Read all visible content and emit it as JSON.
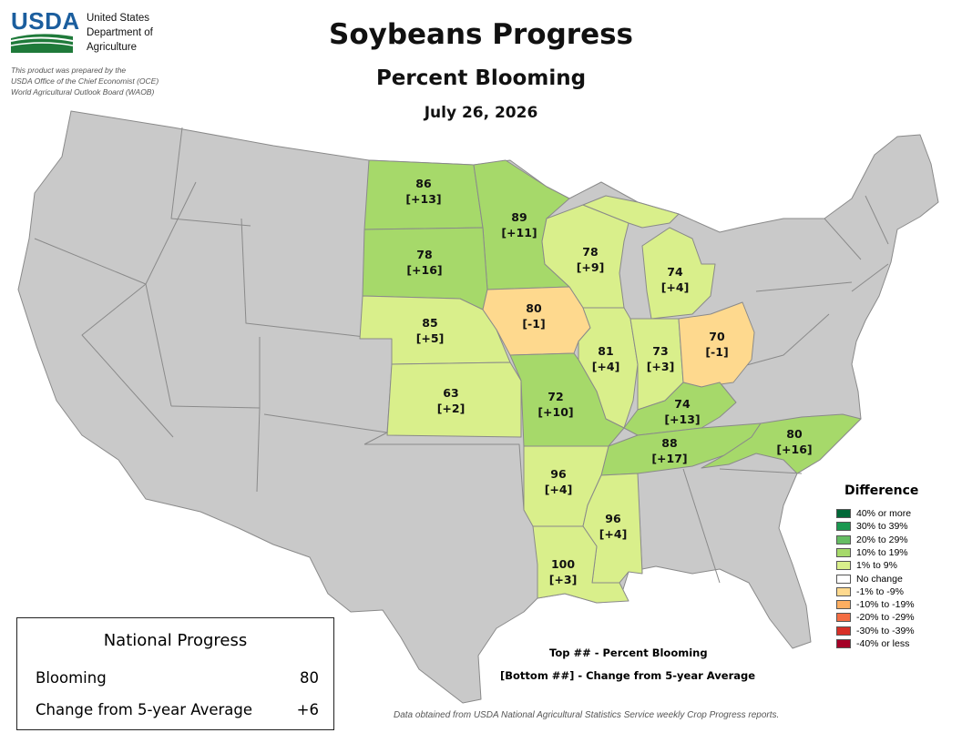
{
  "header": {
    "logo_text": "USDA",
    "department_lines": [
      "United States",
      "Department of",
      "Agriculture"
    ],
    "prepared_note_lines": [
      "This product was prepared by the",
      "USDA Office of the Chief Economist (OCE)",
      "World Agricultural Outlook Board (WAOB)"
    ]
  },
  "title": "Soybeans Progress",
  "subtitle": "Percent Blooming",
  "date": "July 26, 2026",
  "colors": {
    "no_data_state": "#c9c9c9",
    "state_border": "#8a8a8a",
    "plus_10_to_19": "#a6d96a",
    "plus_1_to_9": "#d9ef8b",
    "minus_1_to_9": "#fed98e"
  },
  "states": [
    {
      "name": "North Dakota",
      "top": "86",
      "bottom": "[+13]",
      "category": "10% to 19%"
    },
    {
      "name": "Minnesota",
      "top": "89",
      "bottom": "[+11]",
      "category": "10% to 19%"
    },
    {
      "name": "South Dakota",
      "top": "78",
      "bottom": "[+16]",
      "category": "10% to 19%"
    },
    {
      "name": "Wisconsin",
      "top": "78",
      "bottom": "[+9]",
      "category": "1% to 9%"
    },
    {
      "name": "Michigan",
      "top": "74",
      "bottom": "[+4]",
      "category": "1% to 9%"
    },
    {
      "name": "Nebraska",
      "top": "85",
      "bottom": "[+5]",
      "category": "1% to 9%"
    },
    {
      "name": "Iowa",
      "top": "80",
      "bottom": "[-1]",
      "category": "-1% to -9%"
    },
    {
      "name": "Illinois",
      "top": "81",
      "bottom": "[+4]",
      "category": "1% to 9%"
    },
    {
      "name": "Indiana",
      "top": "73",
      "bottom": "[+3]",
      "category": "1% to 9%"
    },
    {
      "name": "Ohio",
      "top": "70",
      "bottom": "[-1]",
      "category": "-1% to -9%"
    },
    {
      "name": "Kansas",
      "top": "63",
      "bottom": "[+2]",
      "category": "1% to 9%"
    },
    {
      "name": "Missouri",
      "top": "72",
      "bottom": "[+10]",
      "category": "10% to 19%"
    },
    {
      "name": "Kentucky",
      "top": "74",
      "bottom": "[+13]",
      "category": "10% to 19%"
    },
    {
      "name": "Tennessee",
      "top": "88",
      "bottom": "[+17]",
      "category": "10% to 19%"
    },
    {
      "name": "North Carolina",
      "top": "80",
      "bottom": "[+16]",
      "category": "10% to 19%"
    },
    {
      "name": "Arkansas",
      "top": "96",
      "bottom": "[+4]",
      "category": "1% to 9%"
    },
    {
      "name": "Mississippi",
      "top": "96",
      "bottom": "[+4]",
      "category": "1% to 9%"
    },
    {
      "name": "Louisiana",
      "top": "100",
      "bottom": "[+3]",
      "category": "1% to 9%"
    }
  ],
  "legend": {
    "title": "Difference",
    "items": [
      {
        "label": "40% or more",
        "color": "#006837"
      },
      {
        "label": "30% to 39%",
        "color": "#1a9850"
      },
      {
        "label": "20% to 29%",
        "color": "#66bd63"
      },
      {
        "label": "10% to 19%",
        "color": "#a6d96a"
      },
      {
        "label": "1% to 9%",
        "color": "#d9ef8b"
      },
      {
        "label": "No change",
        "color": "#ffffff"
      },
      {
        "label": "-1% to -9%",
        "color": "#fed98e"
      },
      {
        "label": "-10% to -19%",
        "color": "#fdae61"
      },
      {
        "label": "-20% to -29%",
        "color": "#f46d43"
      },
      {
        "label": "-30% to -39%",
        "color": "#d73027"
      },
      {
        "label": "-40% or less",
        "color": "#a50026"
      }
    ]
  },
  "national": {
    "title": "National Progress",
    "rows": [
      {
        "label": "Blooming",
        "value": "80"
      },
      {
        "label": "Change from 5-year Average",
        "value": "+6"
      }
    ]
  },
  "notes": {
    "top": "Top ## - Percent Blooming",
    "bottom": "[Bottom ##] - Change from 5-year Average"
  },
  "source": "Data obtained from USDA National Agricultural Statistics Service weekly Crop Progress reports."
}
